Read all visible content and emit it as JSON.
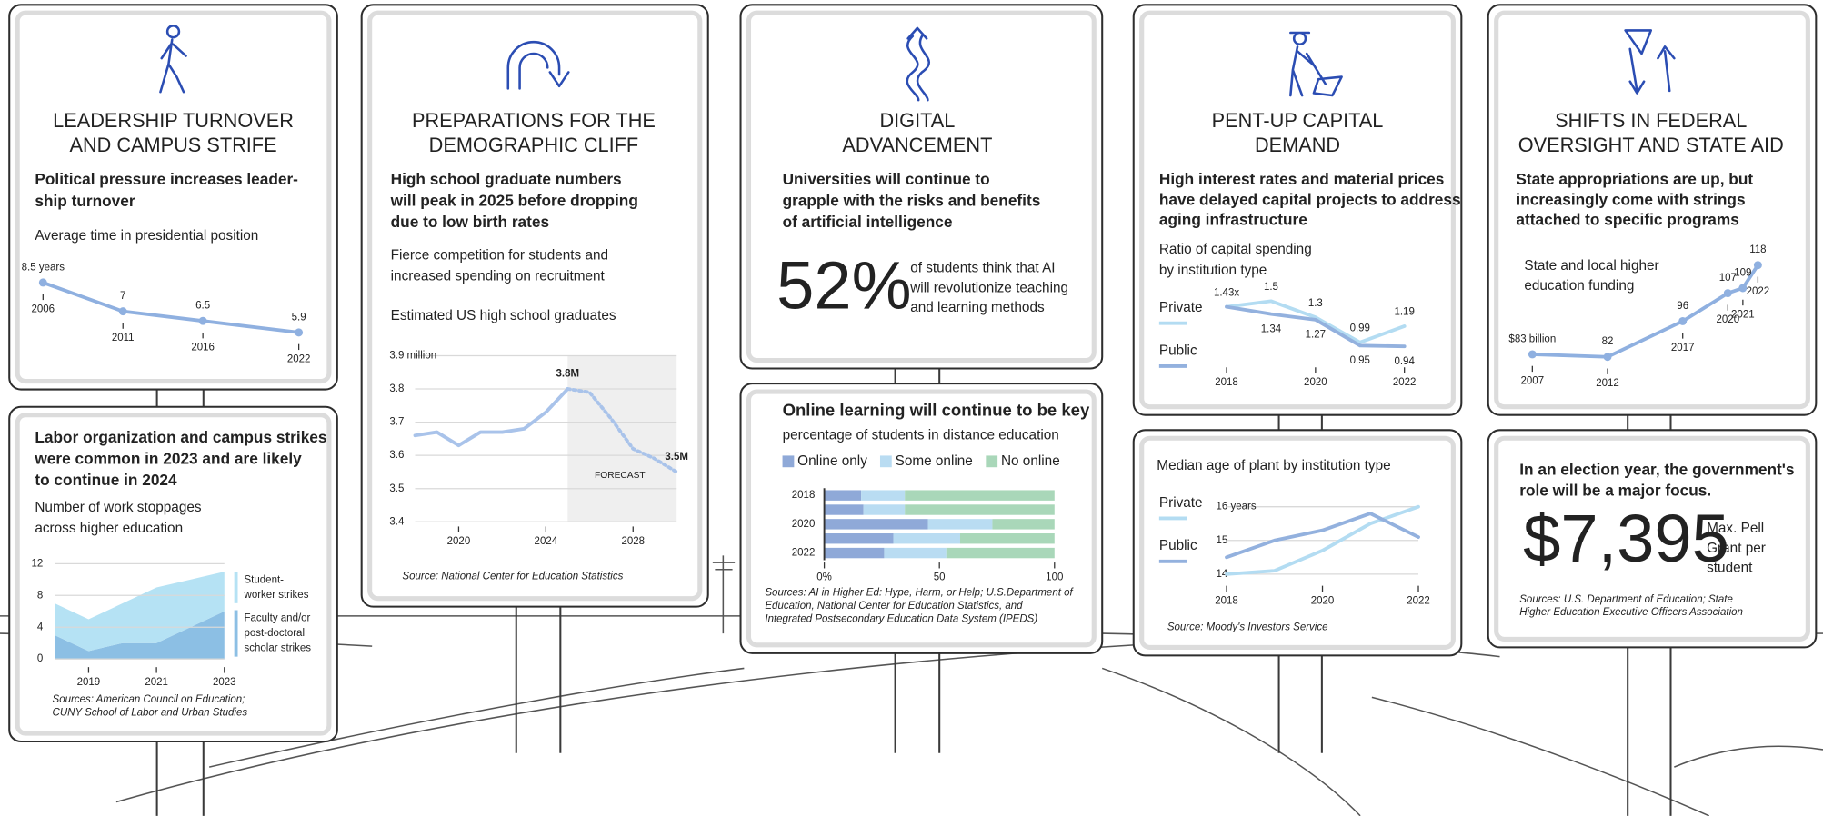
{
  "signs": [
    {
      "title": [
        "LEADERSHIP TURNOVER",
        "AND CAMPUS STRIFE"
      ],
      "heading": [
        "Political pressure increases leader-",
        "ship turnover"
      ]
    },
    {
      "title": [
        "PREPARATIONS FOR THE",
        "DEMOGRAPHIC CLIFF"
      ],
      "heading": [
        "High school graduate numbers",
        "will peak in 2025 before dropping",
        "due to low birth rates"
      ],
      "note": [
        "Fierce competition for students and",
        "increased spending on recruitment"
      ]
    },
    {
      "title": [
        "DIGITAL",
        "ADVANCEMENT"
      ],
      "heading": [
        "Universities will continue to",
        "grapple with the risks and benefits",
        "of artificial intelligence"
      ],
      "stat": "52%",
      "stat_text": [
        "of students think that AI",
        "will revolutionize teaching",
        "and learning methods"
      ]
    },
    {
      "title": [
        "PENT-UP CAPITAL",
        "DEMAND"
      ],
      "heading": [
        "High interest rates and material prices",
        "have delayed capital projects to address",
        "aging infrastructure"
      ]
    },
    {
      "title": [
        "SHIFTS IN FEDERAL",
        "OVERSIGHT AND STATE AID"
      ],
      "heading": [
        "State appropriations are up, but",
        "increasingly come with strings",
        "attached to specific programs"
      ]
    },
    {
      "heading": [
        "In an election year, the government's",
        "role will be a major focus."
      ],
      "stat": "$7,395",
      "stat_text": [
        "Max. Pell",
        "Grant per",
        "student"
      ],
      "source": [
        "Sources: U.S. Department of Education; State",
        "Higher Education Executive Officers Association"
      ]
    }
  ],
  "chart_data": [
    {
      "type": "line",
      "title": [
        "Average time in presidential position"
      ],
      "x": [
        2006,
        2011,
        2016,
        2022
      ],
      "values": [
        8.5,
        7,
        6.5,
        5.9
      ],
      "value_labels": [
        "8.5 years",
        "7",
        "6.5",
        "5.9"
      ],
      "color": "#8fb0e0",
      "xticks": [
        2006,
        2011,
        2016,
        2022
      ]
    },
    {
      "type": "area",
      "heading": [
        "Labor organization and campus strikes",
        "were common in 2023 and are likely",
        "to continue in 2024"
      ],
      "title": [
        "Number of work stoppages",
        "across higher education"
      ],
      "x": [
        2018,
        2019,
        2020,
        2021,
        2022,
        2023
      ],
      "xlim": [
        2018,
        2023
      ],
      "xticks": [
        2019,
        2021,
        2023
      ],
      "ylim": [
        0,
        12
      ],
      "yticks": [
        0,
        4,
        8,
        12
      ],
      "grid": true,
      "series": [
        {
          "name": [
            "Faculty and/or",
            "post-doctoral",
            "scholar strikes"
          ],
          "color": "#8cbfe4",
          "values": [
            3,
            1,
            2,
            2,
            4,
            6
          ]
        },
        {
          "name": [
            "Student-",
            "worker strikes"
          ],
          "color": "#b5e2f4",
          "values": [
            4,
            4,
            5,
            7,
            6,
            5
          ]
        }
      ],
      "source": [
        "Sources: American Council on Education;",
        "CUNY School of Labor and Urban Studies"
      ]
    },
    {
      "type": "line",
      "title": [
        "Estimated US high school graduates"
      ],
      "x": [
        2018,
        2019,
        2020,
        2021,
        2022,
        2023,
        2024,
        2025,
        2026,
        2027,
        2028,
        2029,
        2030
      ],
      "values": [
        3.66,
        3.67,
        3.63,
        3.67,
        3.67,
        3.68,
        3.73,
        3.8,
        3.79,
        3.71,
        3.62,
        3.59,
        3.55
      ],
      "value_labels": [
        null,
        null,
        null,
        null,
        null,
        null,
        null,
        "3.8M",
        null,
        null,
        null,
        null,
        "3.5M"
      ],
      "color": "#a9c3ea",
      "xlim": [
        2018,
        2030
      ],
      "xticks": [
        2020,
        2024,
        2028
      ],
      "ylim": [
        3.4,
        3.9
      ],
      "yticks": [
        3.4,
        3.5,
        3.6,
        3.7,
        3.8,
        {
          "value": 3.9,
          "label": "3.9  million"
        }
      ],
      "grid": true,
      "forecast": {
        "start": 2025,
        "label": "FORECAST"
      },
      "source": [
        "Source: National Center for Education Statistics"
      ]
    },
    {
      "type": "bar",
      "title": "Online learning will continue to be key",
      "subtitle": "percentage of students in distance education",
      "categories": [
        "2018",
        null,
        "2020",
        null,
        "2022"
      ],
      "xlim": [
        0,
        100
      ],
      "xticks": [
        {
          "value": 0,
          "label": "0%"
        },
        50,
        100
      ],
      "series": [
        {
          "name": "Online only",
          "color": "#8fa9d8",
          "values": [
            16,
            17,
            45,
            30,
            26
          ]
        },
        {
          "name": "Some online",
          "color": "#b9dcf2",
          "values": [
            19,
            18,
            28,
            29,
            27
          ]
        },
        {
          "name": "No online",
          "color": "#a9d7b9",
          "values": [
            65,
            65,
            27,
            41,
            47
          ]
        }
      ],
      "source": [
        "Sources: AI in Higher Ed: Hype, Harm, or Help; U.S.Department of",
        "Education, National Center for Education Statistics, and",
        "Integrated Postsecondary Education Data System (IPEDS)"
      ]
    },
    {
      "type": "line",
      "title": [
        "Ratio of capital spending",
        "by institution type"
      ],
      "x": [
        2018,
        2019,
        2020,
        2021,
        2022
      ],
      "xticks": [
        2018,
        2020,
        2022
      ],
      "series": [
        {
          "name": "Private",
          "color": "#b3dcf2",
          "values": [
            1.43,
            1.5,
            1.3,
            0.99,
            1.19
          ],
          "value_labels": [
            "1.43x",
            "1.5",
            "1.3",
            "0.99",
            "1.19"
          ]
        },
        {
          "name": "Public",
          "color": "#93b1de",
          "values": [
            1.43,
            1.34,
            1.27,
            0.95,
            0.94
          ],
          "value_labels": [
            null,
            "1.34",
            "1.27",
            "0.95",
            "0.94"
          ]
        }
      ]
    },
    {
      "type": "line",
      "title": [
        "Median age of plant by institution type"
      ],
      "x": [
        2018,
        2019,
        2020,
        2021,
        2022
      ],
      "xticks": [
        2018,
        2020,
        2022
      ],
      "ylim": [
        14,
        16
      ],
      "yticks": [
        14,
        15,
        {
          "value": 16,
          "label": "16 years"
        }
      ],
      "grid": true,
      "series": [
        {
          "name": "Private",
          "color": "#b3dcf2",
          "values": [
            14,
            14.1,
            14.7,
            15.5,
            16
          ]
        },
        {
          "name": "Public",
          "color": "#93b1de",
          "values": [
            14.5,
            15,
            15.3,
            15.8,
            15.1
          ]
        }
      ],
      "source": [
        "Source: Moody's Investors Service"
      ]
    },
    {
      "type": "line",
      "title": [
        "State and local higher",
        "education funding"
      ],
      "x": [
        2007,
        2012,
        2017,
        2020,
        2021,
        2022
      ],
      "values": [
        83,
        82,
        96,
        107,
        109,
        118
      ],
      "value_labels": [
        "$83 billion",
        "82",
        "96",
        "107",
        "109",
        "118"
      ],
      "color": "#8fb0e0",
      "xticks": [
        2007,
        2012,
        2017,
        2020,
        2021,
        2022
      ]
    }
  ]
}
